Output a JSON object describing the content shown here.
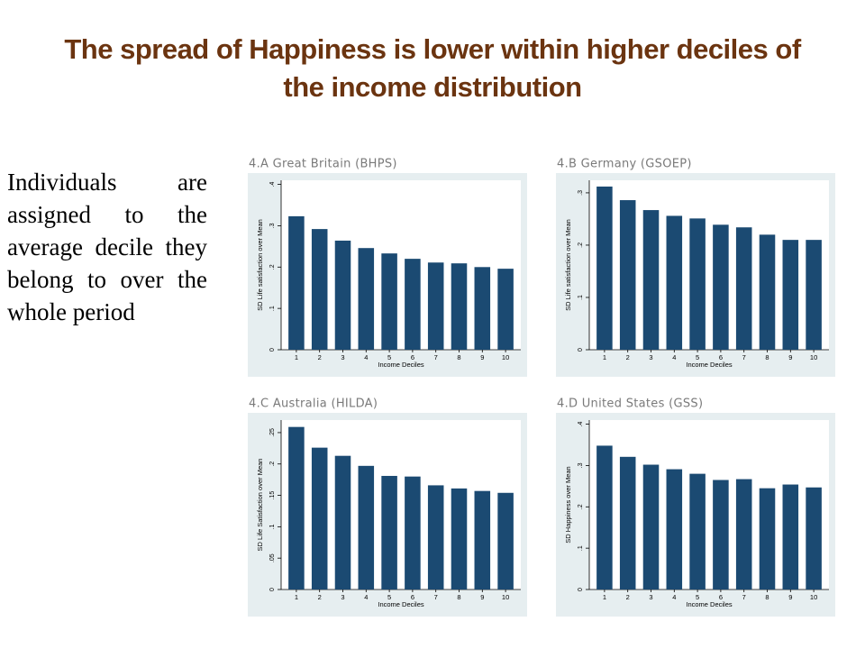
{
  "title": "The spread of Happiness is lower within higher deciles of the income distribution",
  "side_text": "Individuals are assigned to the average decile they belong to over the whole period",
  "chart_data": [
    {
      "type": "bar",
      "title": "4.A Great Britain (BHPS)",
      "x_label": "Income Deciles",
      "y_label": "SD Life satisfaction over Mean",
      "categories": [
        "1",
        "2",
        "3",
        "4",
        "5",
        "6",
        "7",
        "8",
        "9",
        "10"
      ],
      "values": [
        0.323,
        0.292,
        0.264,
        0.246,
        0.233,
        0.22,
        0.211,
        0.209,
        0.2,
        0.196
      ],
      "color": "#1b4a72",
      "ylim": [
        0,
        0.41
      ],
      "yticks": [
        0,
        {
          "value": 0.1,
          "label": ".1"
        },
        {
          "value": 0.2,
          "label": ".2"
        },
        {
          "value": 0.3,
          "label": ".3"
        },
        {
          "value": 0.4,
          "label": ".4"
        }
      ]
    },
    {
      "type": "bar",
      "title": "4.B  Germany (GSOEP)",
      "x_label": "Income Deciles",
      "y_label": "SD Life satisfaction over Mean",
      "categories": [
        "1",
        "2",
        "3",
        "4",
        "5",
        "6",
        "7",
        "8",
        "9",
        "10"
      ],
      "values": [
        0.312,
        0.286,
        0.267,
        0.256,
        0.251,
        0.239,
        0.234,
        0.22,
        0.21,
        0.21
      ],
      "color": "#1b4a72",
      "ylim": [
        0,
        0.324
      ],
      "yticks": [
        0,
        {
          "value": 0.1,
          "label": ".1"
        },
        {
          "value": 0.2,
          "label": ".2"
        },
        {
          "value": 0.3,
          "label": ".3"
        }
      ]
    },
    {
      "type": "bar",
      "title": "4.C Australia (HILDA)",
      "x_label": "Income Deciles",
      "y_label": "SD Life Satisfaction over Mean",
      "categories": [
        "1",
        "2",
        "3",
        "4",
        "5",
        "6",
        "7",
        "8",
        "9",
        "10"
      ],
      "values": [
        0.259,
        0.226,
        0.213,
        0.197,
        0.181,
        0.18,
        0.166,
        0.161,
        0.157,
        0.154
      ],
      "color": "#1b4a72",
      "ylim": [
        0,
        0.27
      ],
      "yticks": [
        0,
        {
          "value": 0.05,
          "label": ".05"
        },
        {
          "value": 0.1,
          "label": ".1"
        },
        {
          "value": 0.15,
          "label": ".15"
        },
        {
          "value": 0.2,
          "label": ".2"
        },
        {
          "value": 0.25,
          "label": ".25"
        }
      ]
    },
    {
      "type": "bar",
      "title": "4.D United States (GSS)",
      "x_label": "Income Deciles",
      "y_label": "SD Happiness over Mean",
      "categories": [
        "1",
        "2",
        "3",
        "4",
        "5",
        "6",
        "7",
        "8",
        "9",
        "10"
      ],
      "values": [
        0.348,
        0.321,
        0.302,
        0.291,
        0.28,
        0.265,
        0.267,
        0.245,
        0.254,
        0.247
      ],
      "color": "#1b4a72",
      "ylim": [
        0,
        0.41
      ],
      "yticks": [
        0,
        {
          "value": 0.1,
          "label": ".1"
        },
        {
          "value": 0.2,
          "label": ".2"
        },
        {
          "value": 0.3,
          "label": ".3"
        },
        {
          "value": 0.4,
          "label": ".4"
        }
      ]
    }
  ]
}
